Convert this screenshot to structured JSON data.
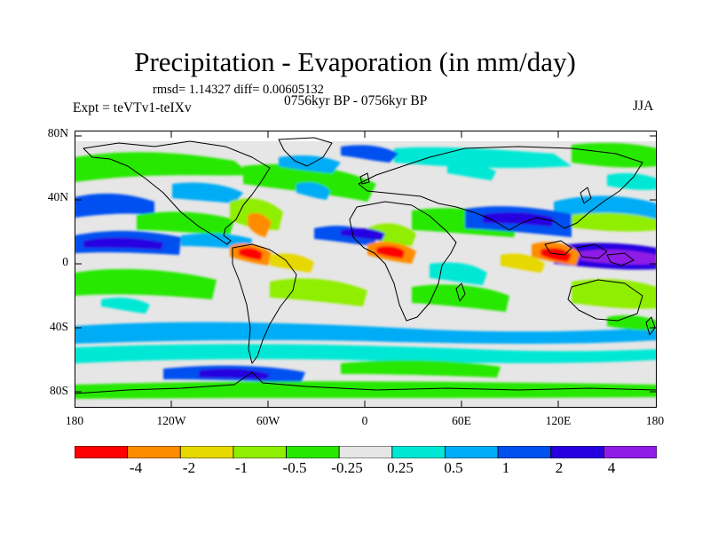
{
  "title": "Precipitation - Evaporation (in mm/day)",
  "stats_line": "rmsd= 1.14327 diff= 0.00605132",
  "period_line": "0756kyr BP - 0756kyr BP",
  "experiment_label": "Expt = teVTv1-teIXv",
  "season_label": "JJA",
  "lat_labels": [
    "80N",
    "40N",
    "0",
    "40S",
    "80S"
  ],
  "lon_labels": [
    "180",
    "120W",
    "60W",
    "0",
    "60E",
    "120E",
    "180"
  ],
  "colorbar": {
    "labels": [
      "-4",
      "-2",
      "-1",
      "-0.5",
      "-0.25",
      "0.25",
      "0.5",
      "1",
      "2",
      "4"
    ],
    "colors": [
      "#ff0000",
      "#ff8c00",
      "#e6d800",
      "#90ee00",
      "#27e800",
      "#e6e6e6",
      "#00e8d5",
      "#00acf5",
      "#0050f0",
      "#2800e0",
      "#8e1ee6"
    ]
  },
  "colors": {
    "missing_land": "#000000",
    "coastline": "#000000",
    "background_field": "#e6e6e6"
  }
}
